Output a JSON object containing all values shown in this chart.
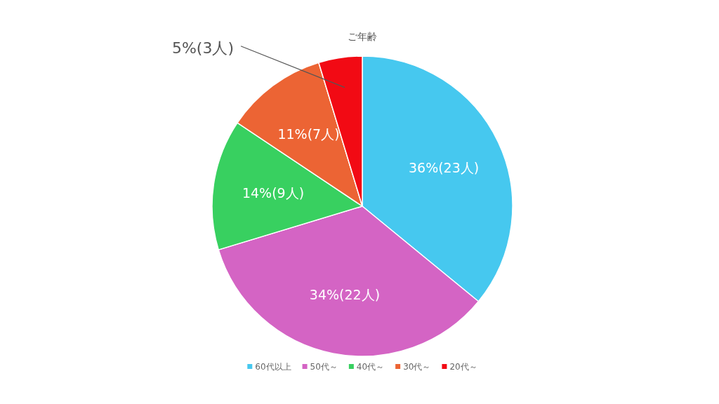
{
  "chart_data": {
    "type": "pie",
    "title": "ご年齢",
    "categories": [
      "60代以上",
      "50代～",
      "40代～",
      "30代～",
      "20代～"
    ],
    "values": [
      23,
      22,
      9,
      7,
      3
    ],
    "colors": [
      "#46c8ef",
      "#d464c4",
      "#38d060",
      "#ec6434",
      "#f20a14"
    ],
    "value_labels": [
      "36%(23人)",
      "34%(22人)",
      "14%(9人)",
      "11%(7人)",
      "5%(3人)"
    ],
    "legend": "bottom"
  }
}
